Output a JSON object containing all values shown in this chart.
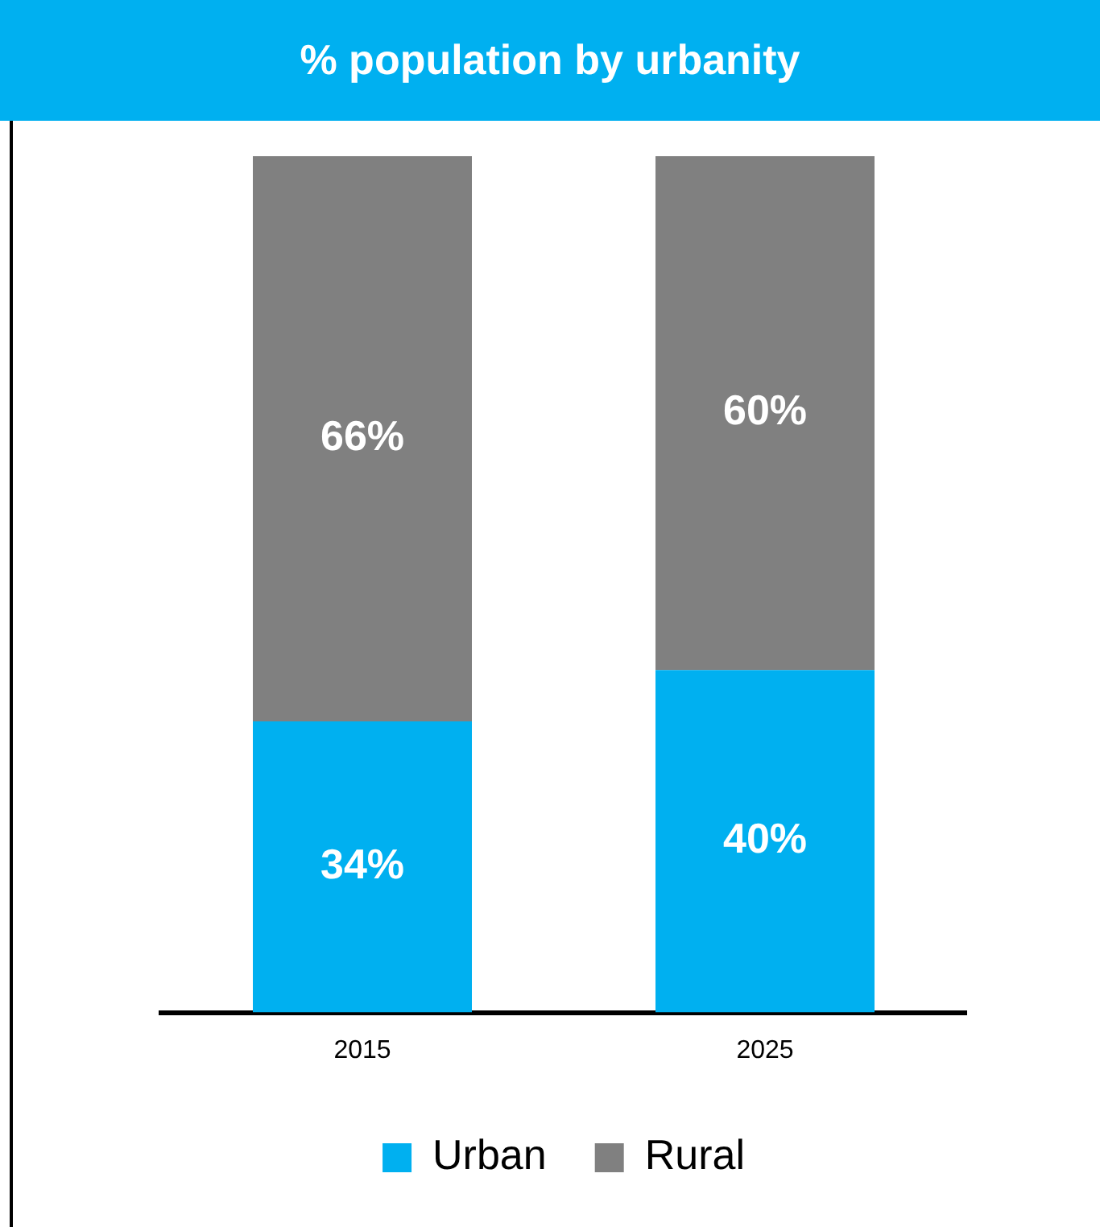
{
  "chart_data": {
    "type": "bar",
    "title": "% population by urbanity",
    "categories": [
      "2015",
      "2025"
    ],
    "stacked": true,
    "series": [
      {
        "name": "Urban",
        "color": "#00b0f0",
        "values": [
          34,
          40
        ],
        "value_labels": [
          "34%",
          "40%"
        ]
      },
      {
        "name": "Rural",
        "color": "#808080",
        "values": [
          66,
          60
        ],
        "value_labels": [
          "66%",
          "60%"
        ]
      }
    ],
    "legend": "bottom",
    "grid": false,
    "tick_labels": "x"
  }
}
